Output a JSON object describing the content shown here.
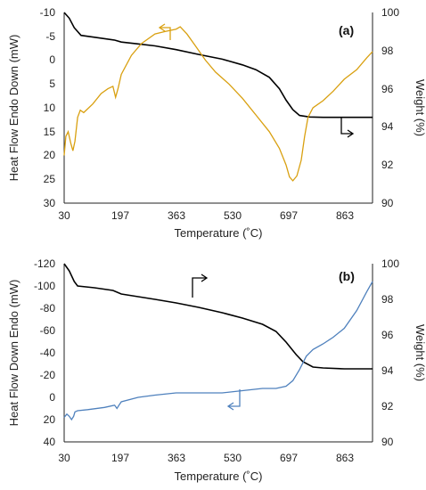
{
  "colors": {
    "weight": "#000000",
    "heatflow_a": "#D9A010",
    "heatflow_b": "#4F81BD"
  },
  "chart_data": [
    {
      "type": "line",
      "panel_label": "(a)",
      "xlabel": "Temperature (˚C)",
      "ylabel_left": "Heat Flow Endo Down (mW)",
      "ylabel_right": "Weight (%)",
      "xlim": [
        30,
        947
      ],
      "ylim_left": [
        30,
        -10
      ],
      "ylim_right": [
        90,
        100
      ],
      "x_ticks": [
        "30",
        "197",
        "363",
        "530",
        "697",
        "863"
      ],
      "y_left_ticks": [
        "-10",
        "-5",
        "0",
        "5",
        "10",
        "15",
        "20",
        "25",
        "30"
      ],
      "y_right_ticks": [
        "90",
        "92",
        "94",
        "96",
        "98",
        "100"
      ],
      "grid": false,
      "series": [
        {
          "axis": "right",
          "color": "#000000",
          "points": [
            [
              30,
              100
            ],
            [
              45,
              99.7
            ],
            [
              60,
              99.2
            ],
            [
              80,
              98.8
            ],
            [
              120,
              98.7
            ],
            [
              180,
              98.55
            ],
            [
              200,
              98.45
            ],
            [
              250,
              98.35
            ],
            [
              300,
              98.25
            ],
            [
              363,
              98.05
            ],
            [
              430,
              97.8
            ],
            [
              500,
              97.55
            ],
            [
              560,
              97.25
            ],
            [
              600,
              97.0
            ],
            [
              640,
              96.6
            ],
            [
              670,
              96.0
            ],
            [
              690,
              95.4
            ],
            [
              710,
              94.9
            ],
            [
              730,
              94.6
            ],
            [
              760,
              94.52
            ],
            [
              800,
              94.5
            ],
            [
              863,
              94.5
            ],
            [
              947,
              94.5
            ]
          ]
        },
        {
          "axis": "left",
          "color": "#D9A010",
          "points": [
            [
              30,
              20
            ],
            [
              35,
              16
            ],
            [
              42,
              15
            ],
            [
              50,
              17.5
            ],
            [
              56,
              19
            ],
            [
              62,
              17
            ],
            [
              70,
              12
            ],
            [
              78,
              10.5
            ],
            [
              88,
              11
            ],
            [
              100,
              10.2
            ],
            [
              115,
              9.2
            ],
            [
              140,
              7
            ],
            [
              160,
              6
            ],
            [
              175,
              5.5
            ],
            [
              183,
              7.8
            ],
            [
              190,
              6
            ],
            [
              200,
              3
            ],
            [
              230,
              -1
            ],
            [
              260,
              -3.5
            ],
            [
              300,
              -5.5
            ],
            [
              330,
              -6
            ],
            [
              363,
              -6.5
            ],
            [
              375,
              -7
            ],
            [
              395,
              -5.5
            ],
            [
              420,
              -3
            ],
            [
              450,
              0
            ],
            [
              480,
              2.5
            ],
            [
              520,
              5
            ],
            [
              560,
              8
            ],
            [
              600,
              11.5
            ],
            [
              640,
              15
            ],
            [
              670,
              18.5
            ],
            [
              690,
              22
            ],
            [
              700,
              24.5
            ],
            [
              710,
              25.3
            ],
            [
              722,
              24.3
            ],
            [
              735,
              21
            ],
            [
              745,
              16
            ],
            [
              755,
              12
            ],
            [
              770,
              10
            ],
            [
              800,
              8.5
            ],
            [
              830,
              6.5
            ],
            [
              863,
              4
            ],
            [
              900,
              2
            ],
            [
              930,
              -0.5
            ],
            [
              947,
              -1.8
            ]
          ]
        }
      ],
      "annotations": [
        "left-pointing arrow marks the heat flow curve",
        "right-pointing arrow marks the weight curve"
      ]
    },
    {
      "type": "line",
      "panel_label": "(b)",
      "xlabel": "Temperature (˚C)",
      "ylabel_left": "Heat Flow Down Endo (mW)",
      "ylabel_right": "Weight (%)",
      "xlim": [
        30,
        947
      ],
      "ylim_left": [
        40,
        -120
      ],
      "ylim_right": [
        90,
        100
      ],
      "x_ticks": [
        "30",
        "197",
        "363",
        "530",
        "697",
        "863"
      ],
      "y_left_ticks": [
        "-120",
        "-100",
        "-80",
        "-60",
        "-40",
        "-20",
        "0",
        "20",
        "40"
      ],
      "y_right_ticks": [
        "90",
        "92",
        "94",
        "96",
        "98",
        "100"
      ],
      "grid": false,
      "series": [
        {
          "axis": "right",
          "color": "#000000",
          "points": [
            [
              30,
              100
            ],
            [
              45,
              99.6
            ],
            [
              60,
              99.0
            ],
            [
              70,
              98.75
            ],
            [
              120,
              98.65
            ],
            [
              175,
              98.5
            ],
            [
              200,
              98.3
            ],
            [
              250,
              98.15
            ],
            [
              300,
              98.0
            ],
            [
              363,
              97.8
            ],
            [
              430,
              97.55
            ],
            [
              500,
              97.25
            ],
            [
              560,
              96.95
            ],
            [
              620,
              96.6
            ],
            [
              660,
              96.2
            ],
            [
              690,
              95.6
            ],
            [
              720,
              94.9
            ],
            [
              740,
              94.5
            ],
            [
              770,
              94.2
            ],
            [
              800,
              94.15
            ],
            [
              863,
              94.1
            ],
            [
              947,
              94.1
            ]
          ]
        },
        {
          "axis": "left",
          "color": "#4F81BD",
          "points": [
            [
              30,
              18
            ],
            [
              38,
              15
            ],
            [
              45,
              17
            ],
            [
              52,
              20
            ],
            [
              58,
              17
            ],
            [
              62,
              13
            ],
            [
              70,
              12
            ],
            [
              100,
              11
            ],
            [
              150,
              9
            ],
            [
              180,
              7
            ],
            [
              187,
              10
            ],
            [
              193,
              7
            ],
            [
              200,
              4
            ],
            [
              250,
              0
            ],
            [
              300,
              -2
            ],
            [
              363,
              -4
            ],
            [
              430,
              -4
            ],
            [
              500,
              -4
            ],
            [
              560,
              -6
            ],
            [
              620,
              -8
            ],
            [
              660,
              -8
            ],
            [
              690,
              -10
            ],
            [
              710,
              -15
            ],
            [
              730,
              -25
            ],
            [
              750,
              -37
            ],
            [
              770,
              -43
            ],
            [
              800,
              -48
            ],
            [
              830,
              -54
            ],
            [
              863,
              -62
            ],
            [
              900,
              -78
            ],
            [
              930,
              -95
            ],
            [
              947,
              -104
            ]
          ]
        }
      ],
      "annotations": [
        "right-pointing arrow marks the weight curve",
        "left-pointing arrow marks the heat flow curve"
      ]
    }
  ]
}
